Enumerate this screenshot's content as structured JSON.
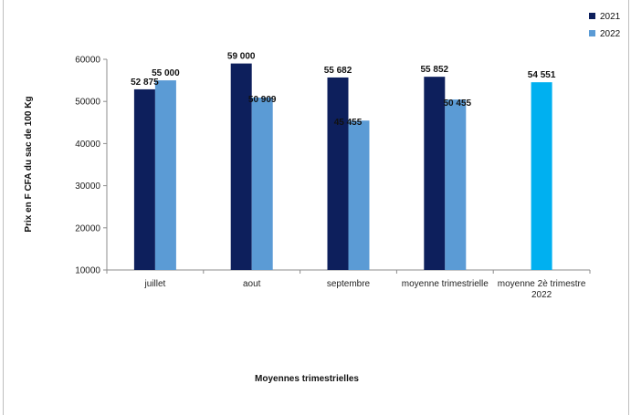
{
  "chart_data": {
    "type": "bar",
    "categories": [
      "juillet",
      "aout",
      "septembre",
      "moyenne trimestrielle",
      [
        "moyenne 2è  trimestre",
        "2022"
      ]
    ],
    "series": [
      {
        "name": "2021",
        "color": "#0d1f5c",
        "values": [
          52875,
          59000,
          55682,
          55852,
          null
        ]
      },
      {
        "name": "2022",
        "color": "#5b9bd5",
        "values": [
          55000,
          50909,
          45455,
          50455,
          54551
        ]
      }
    ],
    "highlight": {
      "category_index": 4,
      "series_index": 1,
      "color": "#00b0f0"
    },
    "data_labels": [
      [
        "52 875",
        "59 000",
        "55 682",
        "55 852",
        null
      ],
      [
        "55 000",
        "50 909",
        "45 455",
        "50 455",
        "54 551"
      ]
    ],
    "y_ticks": [
      "10000",
      "20000",
      "30000",
      "40000",
      "50000",
      "60000"
    ],
    "ylim": [
      10000,
      60000
    ],
    "xlabel": "Moyennes trimestrielles",
    "ylabel": "Prix en F CFA du sac de 100 Kg",
    "legend": {
      "position": "top-right",
      "entries": [
        "2021",
        "2022"
      ]
    },
    "grid": false
  }
}
